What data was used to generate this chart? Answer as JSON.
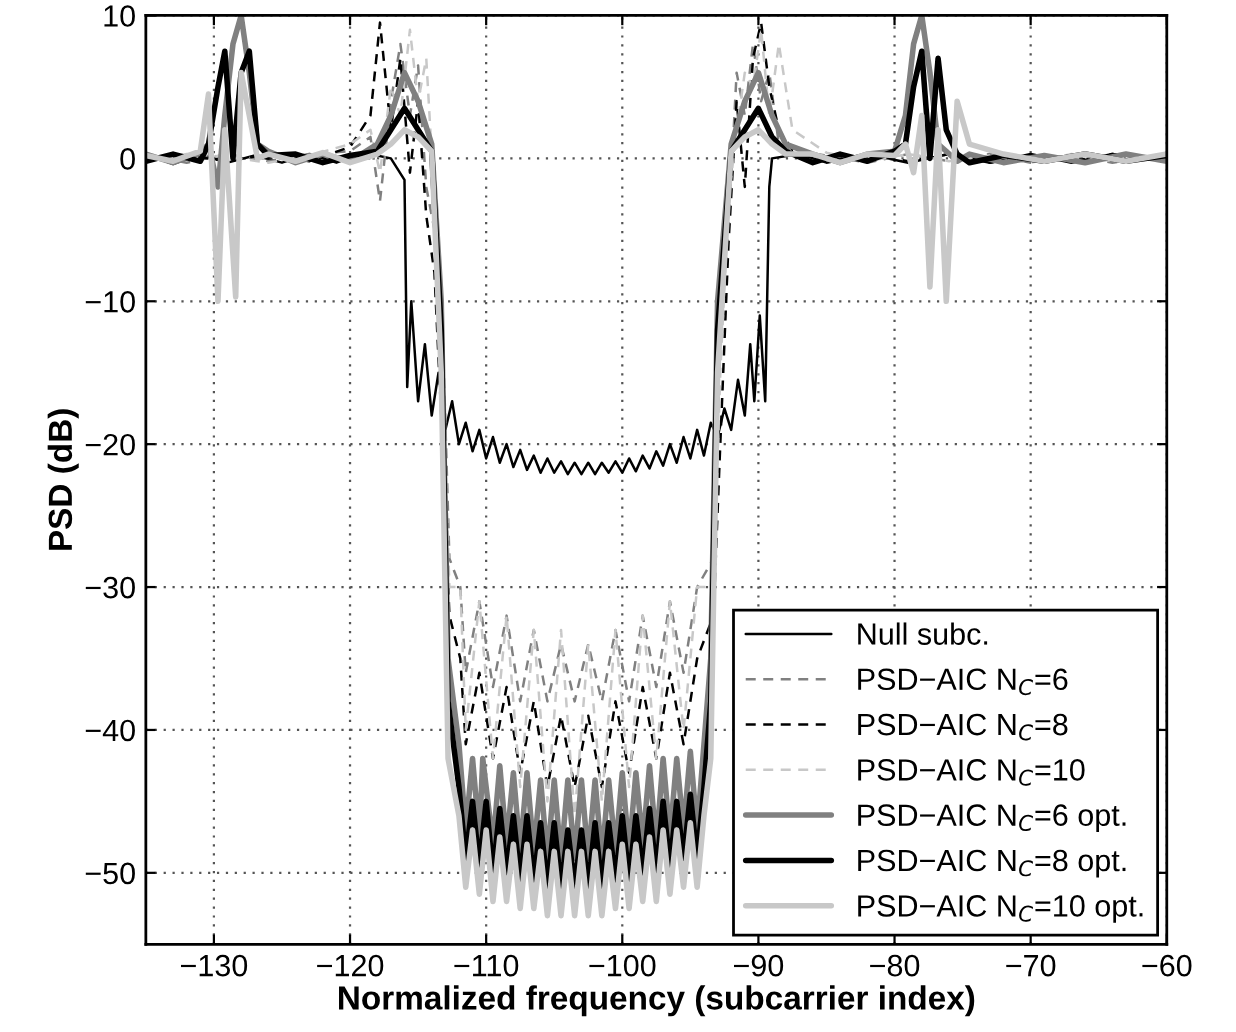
{
  "chart_data": {
    "type": "line",
    "xlabel": "Normalized frequency (subcarrier index)",
    "ylabel": "PSD (dB)",
    "xlim": [
      -135,
      -60
    ],
    "xticks": [
      -130,
      -120,
      -110,
      -100,
      -90,
      -80,
      -70,
      -60
    ],
    "ylim": [
      -55,
      10
    ],
    "yticks": [
      -50,
      -40,
      -30,
      -20,
      -10,
      0,
      10
    ],
    "grid": true,
    "legend": "bottom right",
    "marker": "none",
    "series": [
      {
        "name": "Null subc.",
        "color": "#000000",
        "line_style": "solid",
        "x": [
          -135,
          -133,
          -131,
          -129,
          -127,
          -125,
          -123,
          -121,
          -119,
          -117,
          -116,
          -115.8,
          -115.5,
          -115,
          -114.5,
          -114,
          -113.5,
          -113,
          -112.5,
          -112,
          -111.5,
          -111,
          -110.5,
          -110,
          -109.5,
          -109,
          -108.5,
          -108,
          -107.5,
          -107,
          -106.5,
          -106,
          -105.5,
          -105,
          -104.5,
          -104,
          -103.5,
          -103,
          -102.5,
          -102,
          -101.5,
          -101,
          -100.5,
          -100,
          -99.5,
          -99,
          -98.5,
          -98,
          -97.5,
          -97,
          -96.5,
          -96,
          -95.5,
          -95,
          -94.5,
          -94,
          -93.5,
          -93,
          -92.5,
          -92,
          -91.5,
          -91,
          -90.6,
          -90.3,
          -89.9,
          -89.5,
          -89.2,
          -89,
          -87,
          -85,
          -82,
          -79,
          -76,
          -73,
          -70,
          -67,
          -64,
          -60
        ],
        "values": [
          0.3,
          -0.4,
          0.3,
          -0.3,
          0.2,
          -0.3,
          0.3,
          -0.3,
          0.4,
          0,
          -1.5,
          -16,
          -10,
          -17,
          -13,
          -18,
          -15,
          -19,
          -17,
          -20,
          -18.5,
          -20.5,
          -19,
          -21,
          -19.5,
          -21.3,
          -20,
          -21.6,
          -20.4,
          -21.8,
          -20.8,
          -22,
          -21,
          -22,
          -21.2,
          -22.1,
          -21.3,
          -22.1,
          -21.3,
          -22.1,
          -21.3,
          -22,
          -21.2,
          -22,
          -21,
          -21.9,
          -20.8,
          -21.7,
          -20.5,
          -21.5,
          -20,
          -21.3,
          -19.5,
          -21,
          -19,
          -20.8,
          -18.5,
          -19.5,
          -17.5,
          -19,
          -15.5,
          -18,
          -13,
          -17,
          -11,
          -17,
          -2,
          0,
          0.3,
          -0.3,
          0.3,
          -0.3,
          0.3,
          -0.3,
          0.3,
          -0.3,
          0.3,
          -0.2
        ]
      },
      {
        "name": "PSD−AIC N$_{C}$=6",
        "color": "#808080",
        "line_style": "dashed",
        "x": [
          -135,
          -132,
          -129,
          -126,
          -123,
          -120,
          -118.5,
          -117.8,
          -117,
          -116.3,
          -115.6,
          -115,
          -114.4,
          -113.8,
          -113.2,
          -112.7,
          -111.9,
          -111.5,
          -110.5,
          -109.5,
          -108.5,
          -107.5,
          -106.5,
          -105.5,
          -104.5,
          -103.5,
          -102.5,
          -101.5,
          -100.5,
          -99.5,
          -98.5,
          -97.5,
          -96.5,
          -95.5,
          -94.5,
          -93.3,
          -92.8,
          -92.2,
          -91.6,
          -91,
          -90.4,
          -89.8,
          -89.2,
          -88.5,
          -87.5,
          -85,
          -82,
          -79,
          -76,
          -73,
          -70,
          -67,
          -64,
          -60
        ],
        "values": [
          0.2,
          -0.3,
          0.3,
          -0.2,
          0.3,
          0.5,
          1.5,
          -3,
          4,
          8,
          3,
          6.5,
          -2,
          -5,
          -12,
          -28,
          -30,
          -36,
          -31,
          -37,
          -32,
          -38,
          -33,
          -38,
          -34,
          -38,
          -34,
          -38,
          -33,
          -38,
          -32,
          -37,
          -31,
          -36,
          -30,
          -28,
          -12,
          -5,
          6,
          3,
          8,
          4,
          6,
          1,
          0.5,
          0.2,
          -0.3,
          0.3,
          -0.2,
          0.3,
          -0.3,
          0.2,
          -0.3,
          0.2
        ]
      },
      {
        "name": "PSD−AIC N$_{C}$=8",
        "color": "#000000",
        "line_style": "dashed",
        "x": [
          -135,
          -132,
          -129,
          -126,
          -123,
          -120,
          -118.5,
          -117.8,
          -117,
          -116.3,
          -115.6,
          -115,
          -114.4,
          -113.8,
          -113.2,
          -112.7,
          -111.9,
          -111.5,
          -110.5,
          -109.5,
          -108.5,
          -107.5,
          -106.5,
          -105.5,
          -104.5,
          -103.5,
          -102.5,
          -101.5,
          -100.5,
          -99.5,
          -98.5,
          -97.5,
          -96.5,
          -95.5,
          -94.5,
          -93.3,
          -92.8,
          -92.2,
          -91.6,
          -91,
          -90.4,
          -89.8,
          -89.2,
          -88.5,
          -87.5,
          -85,
          -82,
          -79,
          -76,
          -73,
          -70,
          -67,
          -64,
          -60
        ],
        "values": [
          0.1,
          0.2,
          -0.2,
          0.3,
          -0.2,
          0.8,
          3,
          9.5,
          2,
          7,
          -1,
          4,
          -4,
          -8,
          -20,
          -32,
          -35,
          -41,
          -36,
          -42,
          -37,
          -43,
          -38,
          -44,
          -39,
          -44,
          -39,
          -44,
          -38,
          -43,
          -37,
          -42,
          -36,
          -41,
          -35,
          -32,
          -20,
          -6,
          4,
          -2,
          7,
          9.5,
          5,
          2,
          0.6,
          -0.2,
          0.3,
          -0.2,
          0.3,
          -0.3,
          0.2,
          -0.2,
          0.3,
          -0.1
        ]
      },
      {
        "name": "PSD−AIC N$_{C}$=10",
        "color": "#c8c8c8",
        "line_style": "dashed",
        "x": [
          -135,
          -132,
          -129,
          -126,
          -123,
          -120,
          -118.5,
          -117.8,
          -117,
          -116.3,
          -115.6,
          -115,
          -114.4,
          -113.8,
          -113.2,
          -112.7,
          -111.9,
          -111.5,
          -110.5,
          -109.5,
          -108.5,
          -107.5,
          -106.5,
          -105.5,
          -104.5,
          -103.5,
          -102.5,
          -101.5,
          -100.5,
          -99.5,
          -98.5,
          -97.5,
          -96.5,
          -95.5,
          -94.5,
          -93.3,
          -92.8,
          -92.2,
          -91.6,
          -91,
          -90.4,
          -89.8,
          -89.2,
          -88.5,
          -87.5,
          -85,
          -82,
          -79,
          -76,
          -73,
          -70,
          -67,
          -64,
          -60
        ],
        "values": [
          -0.2,
          0.3,
          0.1,
          -0.3,
          0.2,
          1,
          2,
          -1,
          5,
          3,
          9,
          4,
          7,
          -3,
          -15,
          -30,
          -30,
          -40,
          -31,
          -42,
          -32,
          -44,
          -33,
          -45,
          -33,
          -46,
          -34,
          -45,
          -33,
          -44,
          -32,
          -42,
          -31,
          -40,
          -30,
          -30,
          -15,
          -3,
          2,
          6,
          5,
          9,
          3,
          8,
          2,
          0.4,
          -0.2,
          0.3,
          -0.2,
          0.2,
          -0.3,
          0.3,
          -0.2,
          0.3
        ]
      },
      {
        "name": "PSD−AIC N$_{C}$=6 opt.",
        "color": "#808080",
        "line_style": "solid",
        "x": [
          -135,
          -133,
          -131,
          -130.4,
          -129.7,
          -129.2,
          -128.6,
          -128,
          -127.4,
          -126.8,
          -126,
          -124,
          -122,
          -120,
          -118,
          -117,
          -116,
          -115,
          -114,
          -113.3,
          -112.8,
          -112,
          -111.5,
          -111,
          -110.5,
          -110.25,
          -109.5,
          -109,
          -108.5,
          -108,
          -107.5,
          -107,
          -106.5,
          -106,
          -105.5,
          -105,
          -104.5,
          -104,
          -103.5,
          -103,
          -102.5,
          -102,
          -101.5,
          -101,
          -100.5,
          -100,
          -99.5,
          -99,
          -98.5,
          -98,
          -97.5,
          -97,
          -96.5,
          -96,
          -95.5,
          -95,
          -94.5,
          -94,
          -93.5,
          -93,
          -92,
          -91,
          -90,
          -89,
          -88,
          -86,
          -84,
          -82,
          -80,
          -79.2,
          -78.6,
          -78,
          -77.4,
          -76.8,
          -76.2,
          -75.4,
          -74.5,
          -72,
          -69,
          -66,
          -63,
          -60
        ],
        "values": [
          0.3,
          -0.3,
          0.4,
          1,
          -2,
          3,
          8,
          10,
          6,
          1,
          0.5,
          -0.3,
          0.3,
          -0.2,
          1,
          3,
          6,
          4,
          1,
          -10,
          -35,
          -41,
          -47,
          -42,
          -47.5,
          -42,
          -48,
          -42.5,
          -48,
          -43,
          -48.5,
          -43,
          -48.5,
          -43.5,
          -49,
          -43.5,
          -49,
          -43.5,
          -49,
          -43.5,
          -49,
          -43.5,
          -49,
          -43.5,
          -48.5,
          -43,
          -48.5,
          -43,
          -48,
          -42.5,
          -48,
          -42,
          -47.5,
          -42,
          -47,
          -41.5,
          -47,
          -41,
          -35,
          -10,
          1,
          4,
          6,
          3,
          1,
          0.3,
          -0.3,
          0.3,
          0.5,
          3,
          8,
          10,
          6,
          1,
          0.5,
          -0.2,
          0.3,
          -0.3,
          0.2,
          -0.3,
          0.3,
          -0.2
        ]
      },
      {
        "name": "PSD−AIC N$_{C}$=8 opt.",
        "color": "#000000",
        "line_style": "solid",
        "x": [
          -135,
          -133,
          -131,
          -130.4,
          -129.7,
          -129.2,
          -128.6,
          -128,
          -127.4,
          -126.8,
          -126,
          -124,
          -122,
          -120,
          -118,
          -117,
          -116,
          -115,
          -114,
          -113.3,
          -112.8,
          -112,
          -111.5,
          -111,
          -110.5,
          -110,
          -109.5,
          -109,
          -108.5,
          -108,
          -107.5,
          -107,
          -106.5,
          -106,
          -105.5,
          -105,
          -104.5,
          -104,
          -103.5,
          -103,
          -102.5,
          -102,
          -101.5,
          -101,
          -100.5,
          -100,
          -99.5,
          -99,
          -98.5,
          -98,
          -97.5,
          -97,
          -96.5,
          -96,
          -95.5,
          -95,
          -94.5,
          -94,
          -93.5,
          -93,
          -92,
          -91,
          -90,
          -89,
          -88,
          -86,
          -84,
          -82,
          -80,
          -79.2,
          -78.6,
          -78,
          -77.4,
          -76.8,
          -76.2,
          -75.4,
          -74.5,
          -72,
          -69,
          -66,
          -63,
          -60
        ],
        "values": [
          -0.2,
          0.3,
          -0.2,
          1,
          5,
          7.5,
          0,
          6,
          7.5,
          1,
          0.2,
          0.3,
          -0.3,
          0.2,
          0.5,
          2,
          3.5,
          2,
          0.5,
          -12,
          -38,
          -44,
          -49,
          -45,
          -49.5,
          -45,
          -50,
          -45.5,
          -50,
          -46,
          -50.5,
          -46,
          -50.5,
          -46.5,
          -51,
          -46.5,
          -51,
          -47,
          -51,
          -47,
          -51,
          -46.5,
          -51,
          -46.5,
          -50.5,
          -46,
          -50.5,
          -46,
          -50,
          -45.5,
          -50,
          -45,
          -49.5,
          -45,
          -49,
          -44.5,
          -49,
          -44,
          -38,
          -12,
          0.5,
          2,
          3.5,
          1.5,
          0.5,
          -0.3,
          0.3,
          -0.2,
          0.5,
          1,
          5,
          7.5,
          0,
          7,
          2,
          0.3,
          -0.3,
          0.2,
          -0.2,
          0.3,
          -0.2,
          0.2
        ]
      },
      {
        "name": "PSD−AIC N$_{C}$=10 opt.",
        "color": "#c8c8c8",
        "line_style": "solid",
        "x": [
          -135,
          -133,
          -131,
          -130.4,
          -129.7,
          -129.2,
          -128.4,
          -128,
          -127.4,
          -126.8,
          -126,
          -124,
          -122,
          -120,
          -118,
          -117,
          -116,
          -115,
          -114,
          -113.3,
          -112.8,
          -112,
          -111.5,
          -111,
          -110.5,
          -110,
          -109.5,
          -109,
          -108.5,
          -108,
          -107.5,
          -107,
          -106.5,
          -106,
          -105.5,
          -105,
          -104.5,
          -104,
          -103.5,
          -103,
          -102.5,
          -102,
          -101.5,
          -101,
          -100.5,
          -100,
          -99.5,
          -99,
          -98.5,
          -98,
          -97.5,
          -97,
          -96.5,
          -96,
          -95.5,
          -95,
          -94.5,
          -94,
          -93.5,
          -93,
          -92,
          -91,
          -90,
          -89,
          -88,
          -86,
          -84,
          -82,
          -80,
          -79.2,
          -78.6,
          -78,
          -77.4,
          -76.8,
          -76.2,
          -75.4,
          -74.5,
          -72,
          -69,
          -66,
          -63,
          -60
        ],
        "values": [
          0.2,
          -0.2,
          0.5,
          4.5,
          -10,
          2,
          -9.7,
          6,
          3,
          0,
          0.3,
          -0.2,
          0.4,
          -0.3,
          0.3,
          1,
          2,
          1.5,
          0.5,
          -15,
          -42,
          -46,
          -51,
          -47,
          -51.5,
          -47,
          -52,
          -47.5,
          -52,
          -48,
          -52.5,
          -48,
          -52.5,
          -48.5,
          -53,
          -48.5,
          -53,
          -48.5,
          -53,
          -48.5,
          -53,
          -48.5,
          -53,
          -48.5,
          -52.5,
          -48,
          -52.5,
          -48,
          -52,
          -47.5,
          -52,
          -47,
          -51.5,
          -47,
          -51,
          -46.5,
          -51,
          -46,
          -42,
          -15,
          0.5,
          1.5,
          2,
          1,
          0.3,
          0.3,
          -0.3,
          0.3,
          0.2,
          1,
          -1,
          3,
          -9,
          2,
          -10,
          4,
          1,
          0.3,
          -0.2,
          0.3,
          -0.2,
          0.3
        ]
      }
    ]
  }
}
